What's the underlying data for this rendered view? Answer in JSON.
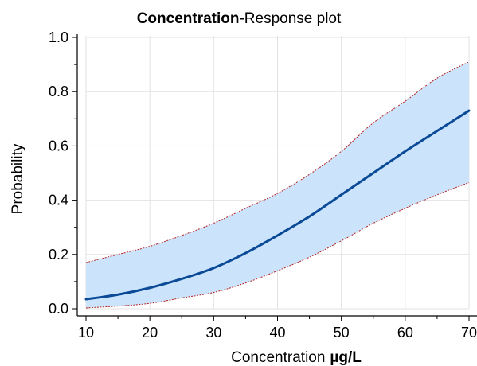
{
  "chart_data": {
    "type": "line",
    "title_bold": "Concentration",
    "title_rest": "-Response plot",
    "xlabel": "Concentration",
    "xunit": "µg/L",
    "ylabel": "Probability",
    "xlim": [
      10,
      70
    ],
    "ylim": [
      0.0,
      1.0
    ],
    "grid": true,
    "x_ticks": [
      10,
      20,
      30,
      40,
      50,
      60,
      70
    ],
    "x_tick_labels": [
      "10",
      "20",
      "30",
      "40",
      "50",
      "60",
      "70"
    ],
    "y_ticks": [
      0.0,
      0.2,
      0.4,
      0.6,
      0.8,
      1.0
    ],
    "y_tick_labels": [
      "0.0",
      "0.2",
      "0.4",
      "0.6",
      "0.8",
      "1.0"
    ],
    "x": [
      10,
      15,
      20,
      25,
      30,
      35,
      40,
      45,
      50,
      55,
      60,
      65,
      70
    ],
    "series": [
      {
        "role": "fit",
        "values": [
          0.035,
          0.052,
          0.077,
          0.11,
          0.15,
          0.205,
          0.27,
          0.34,
          0.42,
          0.5,
          0.58,
          0.655,
          0.73
        ]
      },
      {
        "role": "upper",
        "values": [
          0.17,
          0.2,
          0.23,
          0.27,
          0.315,
          0.37,
          0.425,
          0.495,
          0.58,
          0.685,
          0.765,
          0.85,
          0.91
        ]
      },
      {
        "role": "lower",
        "values": [
          0.003,
          0.01,
          0.02,
          0.04,
          0.06,
          0.095,
          0.14,
          0.19,
          0.25,
          0.315,
          0.37,
          0.42,
          0.465
        ]
      }
    ],
    "colors": {
      "fit": "#0a4a96",
      "band_fill": "#cce4fb",
      "band_edge": "#b22222",
      "grid": "#e2e2e2",
      "axis": "#000000"
    }
  }
}
